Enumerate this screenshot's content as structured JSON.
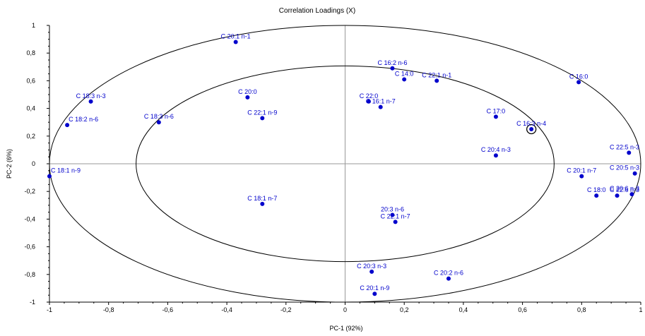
{
  "chart_data": {
    "type": "scatter",
    "title": "Correlation Loadings (X)",
    "xlabel": "PC-1 (92%)",
    "ylabel": "PC-2 (6%)",
    "xlim": [
      -1,
      1
    ],
    "ylim": [
      -1,
      1
    ],
    "x_ticks": [
      -1,
      -0.8,
      -0.6,
      -0.4,
      -0.2,
      0,
      0.2,
      0.4,
      0.6,
      0.8,
      1
    ],
    "x_tick_labels": [
      "-1",
      "-0,8",
      "-0,6",
      "-0,4",
      "-0,2",
      "0",
      "0,2",
      "0,4",
      "0,6",
      "0,8",
      "1"
    ],
    "y_ticks": [
      -1,
      -0.8,
      -0.6,
      -0.4,
      -0.2,
      0,
      0.2,
      0.4,
      0.6,
      0.8,
      1
    ],
    "y_tick_labels": [
      "-1",
      "-0,8",
      "-0,6",
      "-0,4",
      "-0,2",
      "0",
      "0,2",
      "0,4",
      "0,6",
      "0,8",
      "1"
    ],
    "grid": false,
    "point_color": "#0000cc",
    "ellipse_radii": [
      1.0,
      0.707
    ],
    "highlighted": "C 16:3 n-4",
    "points": [
      {
        "label": "C 20:1 n-1",
        "x": -0.37,
        "y": 0.88
      },
      {
        "label": "C 18:3 n-3",
        "x": -0.86,
        "y": 0.45
      },
      {
        "label": "C 18:2 n-6",
        "x": -0.94,
        "y": 0.28
      },
      {
        "label": "C 18:3 n-6",
        "x": -0.63,
        "y": 0.3
      },
      {
        "label": "C 20:0",
        "x": -0.33,
        "y": 0.48
      },
      {
        "label": "C 22:1 n-9",
        "x": -0.28,
        "y": 0.33
      },
      {
        "label": "C 18:1 n-9",
        "x": -1.0,
        "y": -0.09
      },
      {
        "label": "C 18:1 n-7",
        "x": -0.28,
        "y": -0.29
      },
      {
        "label": "C 16:2 n-6",
        "x": 0.16,
        "y": 0.69
      },
      {
        "label": "C 14:0",
        "x": 0.2,
        "y": 0.61
      },
      {
        "label": "C 22:1 n-1",
        "x": 0.31,
        "y": 0.6
      },
      {
        "label": "C 22:0",
        "x": 0.08,
        "y": 0.45
      },
      {
        "label": "C 16:1 n-7",
        "x": 0.12,
        "y": 0.41
      },
      {
        "label": "C 17:0",
        "x": 0.51,
        "y": 0.34
      },
      {
        "label": "C 16:3 n-4",
        "x": 0.63,
        "y": 0.25
      },
      {
        "label": "C 16:0",
        "x": 0.79,
        "y": 0.59
      },
      {
        "label": "C 20:4 n-3",
        "x": 0.51,
        "y": 0.06
      },
      {
        "label": "C 22:5 n-3",
        "x": 0.96,
        "y": 0.08
      },
      {
        "label": "C 20:5 n-3",
        "x": 0.98,
        "y": -0.07
      },
      {
        "label": "C 20:1 n-7",
        "x": 0.8,
        "y": -0.09
      },
      {
        "label": "C 18:0",
        "x": 0.85,
        "y": -0.23
      },
      {
        "label": "C 22:6 n-3",
        "x": 0.92,
        "y": -0.23
      },
      {
        "label": "C 20:6 n-3",
        "x": 0.97,
        "y": -0.22
      },
      {
        "label": "20:3 n-6",
        "x": 0.16,
        "y": -0.37
      },
      {
        "label": "C 22:1 n-7",
        "x": 0.17,
        "y": -0.42
      },
      {
        "label": "C 20:3 n-3",
        "x": 0.09,
        "y": -0.78
      },
      {
        "label": "C 20:1 n-9",
        "x": 0.1,
        "y": -0.94
      },
      {
        "label": "C 20:2 n-6",
        "x": 0.35,
        "y": -0.83
      }
    ]
  }
}
